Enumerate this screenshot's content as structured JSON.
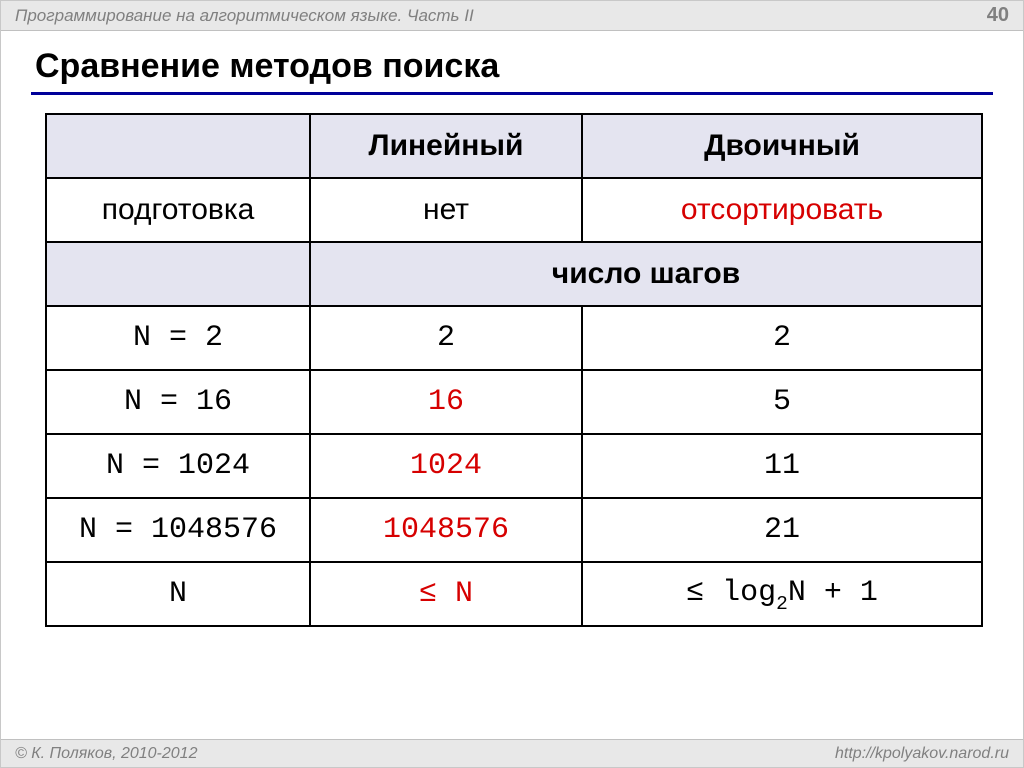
{
  "header": {
    "breadcrumb": "Программирование на алгоритмическом языке. Часть II",
    "page_number": "40"
  },
  "title": "Сравнение методов поиска",
  "table": {
    "columns": {
      "linear": "Линейный",
      "binary": "Двоичный"
    },
    "prep_row": {
      "label": "подготовка",
      "linear": "нет",
      "binary": "отсортировать"
    },
    "steps_header": "число шагов",
    "rows": [
      {
        "label": "N = 2",
        "linear": "2",
        "linear_red": false,
        "binary": "2"
      },
      {
        "label": "N = 16",
        "linear": "16",
        "linear_red": true,
        "binary": "5"
      },
      {
        "label": "N = 1024",
        "linear": "1024",
        "linear_red": true,
        "binary": "11"
      },
      {
        "label": "N = 1048576",
        "linear": "1048576",
        "linear_red": true,
        "binary": "21"
      }
    ],
    "summary": {
      "label": "N",
      "linear": "≤ N",
      "binary_prefix": "≤ log",
      "binary_sub": "2",
      "binary_suffix": "N + 1"
    }
  },
  "footer": {
    "copyright": "© К. Поляков, 2010-2012",
    "url": "http://kpolyakov.narod.ru"
  },
  "colors": {
    "accent_underline": "#000099",
    "header_bg": "#e4e4f0",
    "highlight_red": "#d60000",
    "chrome_bg": "#e8e8e8",
    "chrome_text": "#808080"
  }
}
